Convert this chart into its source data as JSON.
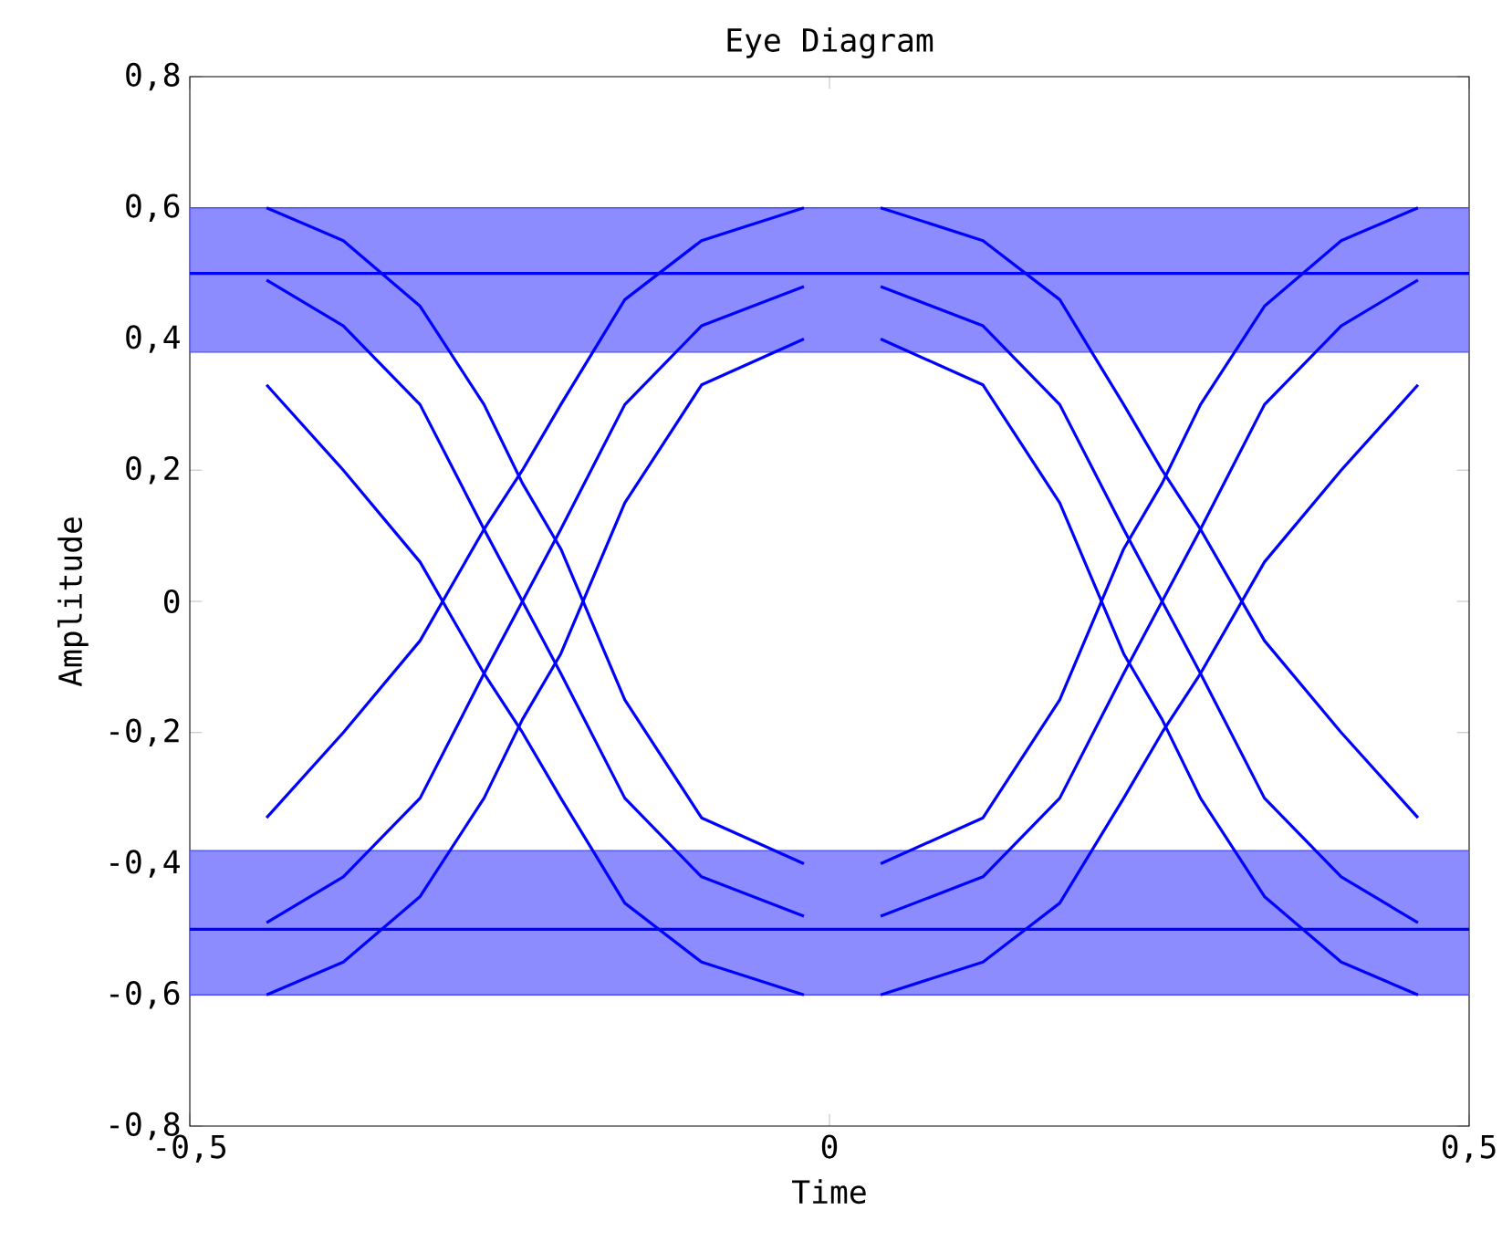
{
  "chart_data": {
    "type": "line",
    "title": "Eye Diagram",
    "xlabel": "Time",
    "ylabel": "Amplitude",
    "xlim": [
      -0.5,
      0.5
    ],
    "ylim": [
      -0.8,
      0.8
    ],
    "xticks": [
      {
        "value": -0.5,
        "label": "-0,5"
      },
      0,
      {
        "value": 0.5,
        "label": "0,5"
      }
    ],
    "yticks": [
      {
        "value": -0.8,
        "label": "-0,8"
      },
      {
        "value": -0.6,
        "label": "-0,6"
      },
      {
        "value": -0.4,
        "label": "-0,4"
      },
      {
        "value": -0.2,
        "label": "-0,2"
      },
      0,
      {
        "value": 0.2,
        "label": "0,2"
      },
      {
        "value": 0.4,
        "label": "0,4"
      },
      {
        "value": 0.6,
        "label": "0,6"
      },
      {
        "value": 0.8,
        "label": "0,8"
      }
    ],
    "line_style": "solid",
    "series": [
      {
        "color": "#0000ff",
        "x": [
          -0.5,
          -0.38,
          -0.24,
          -0.1,
          0.02,
          0.14,
          0.26,
          0.4,
          0.5
        ],
        "values": [
          0.5,
          0.5,
          0.5,
          0.5,
          0.5,
          0.5,
          0.5,
          0.5,
          0.5
        ],
        "upper": [
          0.6,
          0.6,
          0.6,
          0.6,
          0.6,
          0.6,
          0.6,
          0.6,
          0.6
        ],
        "lower": [
          0.38,
          0.38,
          0.38,
          0.38,
          0.38,
          0.38,
          0.38,
          0.38,
          0.38
        ]
      },
      {
        "color": "#0000ff",
        "x": [
          -0.5,
          -0.38,
          -0.24,
          -0.1,
          0.02,
          0.14,
          0.26,
          0.4,
          0.5
        ],
        "values": [
          -0.5,
          -0.5,
          -0.5,
          -0.5,
          -0.5,
          -0.5,
          -0.5,
          -0.5,
          -0.5
        ],
        "upper": [
          -0.38,
          -0.38,
          -0.38,
          -0.38,
          -0.38,
          -0.38,
          -0.38,
          -0.38,
          -0.38
        ],
        "lower": [
          -0.6,
          -0.6,
          -0.6,
          -0.6,
          -0.6,
          -0.6,
          -0.6,
          -0.6,
          -0.6
        ]
      },
      {
        "color": "#0000ff",
        "x": [
          -0.44,
          -0.38,
          -0.32,
          -0.27,
          -0.24,
          -0.21,
          -0.16,
          -0.1,
          -0.02
        ],
        "values": [
          0.49,
          0.42,
          0.3,
          0.11,
          0,
          -0.11,
          -0.3,
          -0.42,
          -0.48
        ]
      },
      {
        "color": "#0000ff",
        "x": [
          -0.44,
          -0.38,
          -0.32,
          -0.27,
          -0.24,
          -0.21,
          -0.16,
          -0.1,
          -0.02
        ],
        "values": [
          0.6,
          0.55,
          0.45,
          0.3,
          0.18,
          0.08,
          -0.15,
          -0.33,
          -0.4
        ]
      },
      {
        "color": "#0000ff",
        "x": [
          -0.44,
          -0.38,
          -0.32,
          -0.27,
          -0.24,
          -0.21,
          -0.16,
          -0.1,
          -0.02
        ],
        "values": [
          0.33,
          0.2,
          0.06,
          -0.11,
          -0.2,
          -0.3,
          -0.46,
          -0.55,
          -0.6
        ]
      },
      {
        "color": "#0000ff",
        "x": [
          -0.44,
          -0.38,
          -0.32,
          -0.27,
          -0.24,
          -0.21,
          -0.16,
          -0.1,
          -0.02
        ],
        "values": [
          -0.49,
          -0.42,
          -0.3,
          -0.11,
          0,
          0.11,
          0.3,
          0.42,
          0.48
        ]
      },
      {
        "color": "#0000ff",
        "x": [
          -0.44,
          -0.38,
          -0.32,
          -0.27,
          -0.24,
          -0.21,
          -0.16,
          -0.1,
          -0.02
        ],
        "values": [
          -0.33,
          -0.2,
          -0.06,
          0.11,
          0.2,
          0.3,
          0.46,
          0.55,
          0.6
        ]
      },
      {
        "color": "#0000ff",
        "x": [
          -0.44,
          -0.38,
          -0.32,
          -0.27,
          -0.24,
          -0.21,
          -0.16,
          -0.1,
          -0.02
        ],
        "values": [
          -0.6,
          -0.55,
          -0.45,
          -0.3,
          -0.18,
          -0.08,
          0.15,
          0.33,
          0.4
        ]
      },
      {
        "color": "#0000ff",
        "x": [
          0.04,
          0.12,
          0.18,
          0.23,
          0.26,
          0.29,
          0.34,
          0.4,
          0.46
        ],
        "values": [
          -0.48,
          -0.42,
          -0.3,
          -0.11,
          0,
          0.11,
          0.3,
          0.42,
          0.49
        ]
      },
      {
        "color": "#0000ff",
        "x": [
          0.04,
          0.12,
          0.18,
          0.23,
          0.26,
          0.29,
          0.34,
          0.4,
          0.46
        ],
        "values": [
          -0.4,
          -0.33,
          -0.15,
          0.08,
          0.18,
          0.3,
          0.45,
          0.55,
          0.6
        ]
      },
      {
        "color": "#0000ff",
        "x": [
          0.04,
          0.12,
          0.18,
          0.23,
          0.26,
          0.29,
          0.34,
          0.4,
          0.46
        ],
        "values": [
          -0.6,
          -0.55,
          -0.46,
          -0.3,
          -0.2,
          -0.11,
          0.06,
          0.2,
          0.33
        ]
      },
      {
        "color": "#0000ff",
        "x": [
          0.04,
          0.12,
          0.18,
          0.23,
          0.26,
          0.29,
          0.34,
          0.4,
          0.46
        ],
        "values": [
          0.48,
          0.42,
          0.3,
          0.11,
          0,
          -0.11,
          -0.3,
          -0.42,
          -0.49
        ]
      },
      {
        "color": "#0000ff",
        "x": [
          0.04,
          0.12,
          0.18,
          0.23,
          0.26,
          0.29,
          0.34,
          0.4,
          0.46
        ],
        "values": [
          0.6,
          0.55,
          0.46,
          0.3,
          0.2,
          0.11,
          -0.06,
          -0.2,
          -0.33
        ]
      },
      {
        "color": "#0000ff",
        "x": [
          0.04,
          0.12,
          0.18,
          0.23,
          0.26,
          0.29,
          0.34,
          0.4,
          0.46
        ],
        "values": [
          0.4,
          0.33,
          0.15,
          -0.08,
          -0.18,
          -0.3,
          -0.45,
          -0.55,
          -0.6
        ]
      }
    ]
  }
}
